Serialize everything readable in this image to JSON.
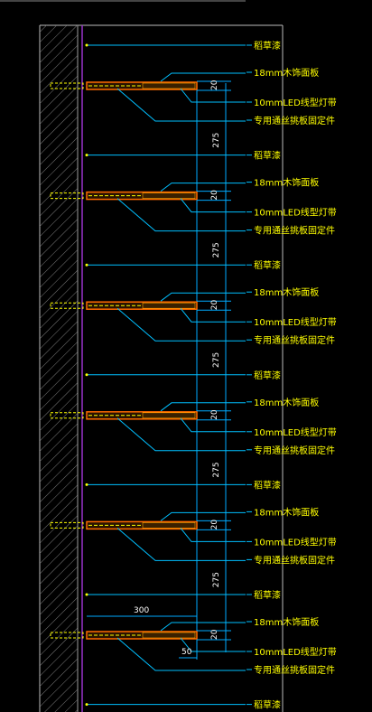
{
  "colors": {
    "background": "#000000",
    "wall_boundary": "#9933cc",
    "shelf": "#ff6a00",
    "text": "#ffff00",
    "leader": "#00bfff",
    "dimension": "#00aaff",
    "hatch": "#808080"
  },
  "labels": {
    "groove": "稻草漆",
    "panel": "18mm木饰面板",
    "led": "10mmLED线型灯带",
    "bracket": "专用通丝挑板固定件"
  },
  "dimensions": {
    "shelf_thickness": "20",
    "shelf_spacing": "275",
    "shelf_depth": "300",
    "led_offset": "50"
  },
  "shelves": [
    {
      "index": 1,
      "thickness_label": "20",
      "spacing_label": "275"
    },
    {
      "index": 2,
      "thickness_label": "20",
      "spacing_label": "275"
    },
    {
      "index": 3,
      "thickness_label": "20",
      "spacing_label": "275"
    },
    {
      "index": 4,
      "thickness_label": "20",
      "spacing_label": "275"
    },
    {
      "index": 5,
      "thickness_label": "20",
      "spacing_label": "275"
    },
    {
      "index": 6,
      "thickness_label": "20",
      "spacing_label": null
    }
  ]
}
